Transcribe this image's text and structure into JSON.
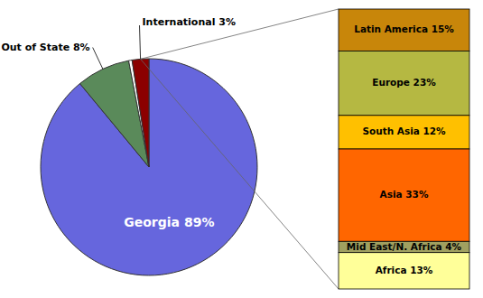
{
  "chart_data": [
    {
      "type": "pie",
      "categories": [
        "Georgia 89%",
        "Out of State 8%",
        null,
        "International 3%"
      ],
      "values": [
        89,
        8,
        0.5,
        2.5
      ],
      "colors": [
        "#6666dd",
        "#5a8a5a",
        "#ffffff",
        "#8b0000"
      ]
    },
    {
      "type": "bar",
      "stacked": true,
      "tick_labels": false,
      "ylim": [
        0,
        100
      ],
      "series": [
        {
          "name": "Latin America 15%",
          "color": "#c8860a",
          "values": [
            15
          ]
        },
        {
          "name": "Europe 23%",
          "color": "#b5b842",
          "values": [
            23
          ]
        },
        {
          "name": "South Asia 12%",
          "color": "#ffc000",
          "values": [
            12
          ]
        },
        {
          "name": "Asia 33%",
          "color": "#ff6600",
          "values": [
            33
          ]
        },
        {
          "name": "Mid East/N. Africa 4%",
          "color": "#a0a060",
          "values": [
            4
          ]
        },
        {
          "name": "Africa 13%",
          "color": "#ffff99",
          "values": [
            13
          ]
        }
      ]
    }
  ]
}
